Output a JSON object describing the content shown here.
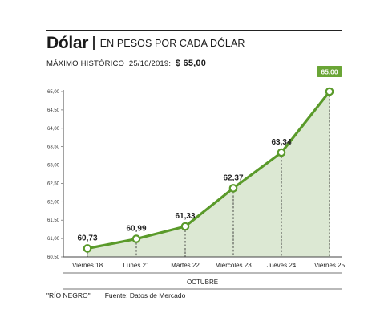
{
  "header": {
    "title": "Dólar",
    "subtitle": "EN PESOS POR CADA DÓLAR",
    "record_label": "MÁXIMO HISTÓRICO",
    "record_date": "25/10/2019:",
    "record_value": "$ 65,00"
  },
  "footer": {
    "credit": "\"RÍO NEGRO\"",
    "source": "Fuente: Datos de Mercado"
  },
  "colors": {
    "line": "#5a9a2a",
    "area": "#dce8d3",
    "highlight_badge": "#6aa536"
  },
  "chart_data": {
    "type": "area",
    "categories": [
      "Viernes 18",
      "Lunes 21",
      "Martes 22",
      "Miércoles 23",
      "Jueves 24",
      "Viernes 25"
    ],
    "values": [
      60.73,
      60.99,
      61.33,
      62.37,
      63.34,
      65.0
    ],
    "value_labels": [
      "60,73",
      "60,99",
      "61,33",
      "62,37",
      "63,34",
      "65,00"
    ],
    "xlabel": "OCTUBRE",
    "ylim": [
      60.5,
      65.0
    ],
    "yticks": [
      "60,50",
      "61,00",
      "61,50",
      "62,00",
      "62,50",
      "63,00",
      "63,50",
      "64,00",
      "64,50",
      "65,00"
    ],
    "ytick_values": [
      60.5,
      61.0,
      61.5,
      62.0,
      62.5,
      63.0,
      63.5,
      64.0,
      64.5,
      65.0
    ],
    "highlighted_point": 5,
    "grid": false,
    "legend": "none"
  }
}
